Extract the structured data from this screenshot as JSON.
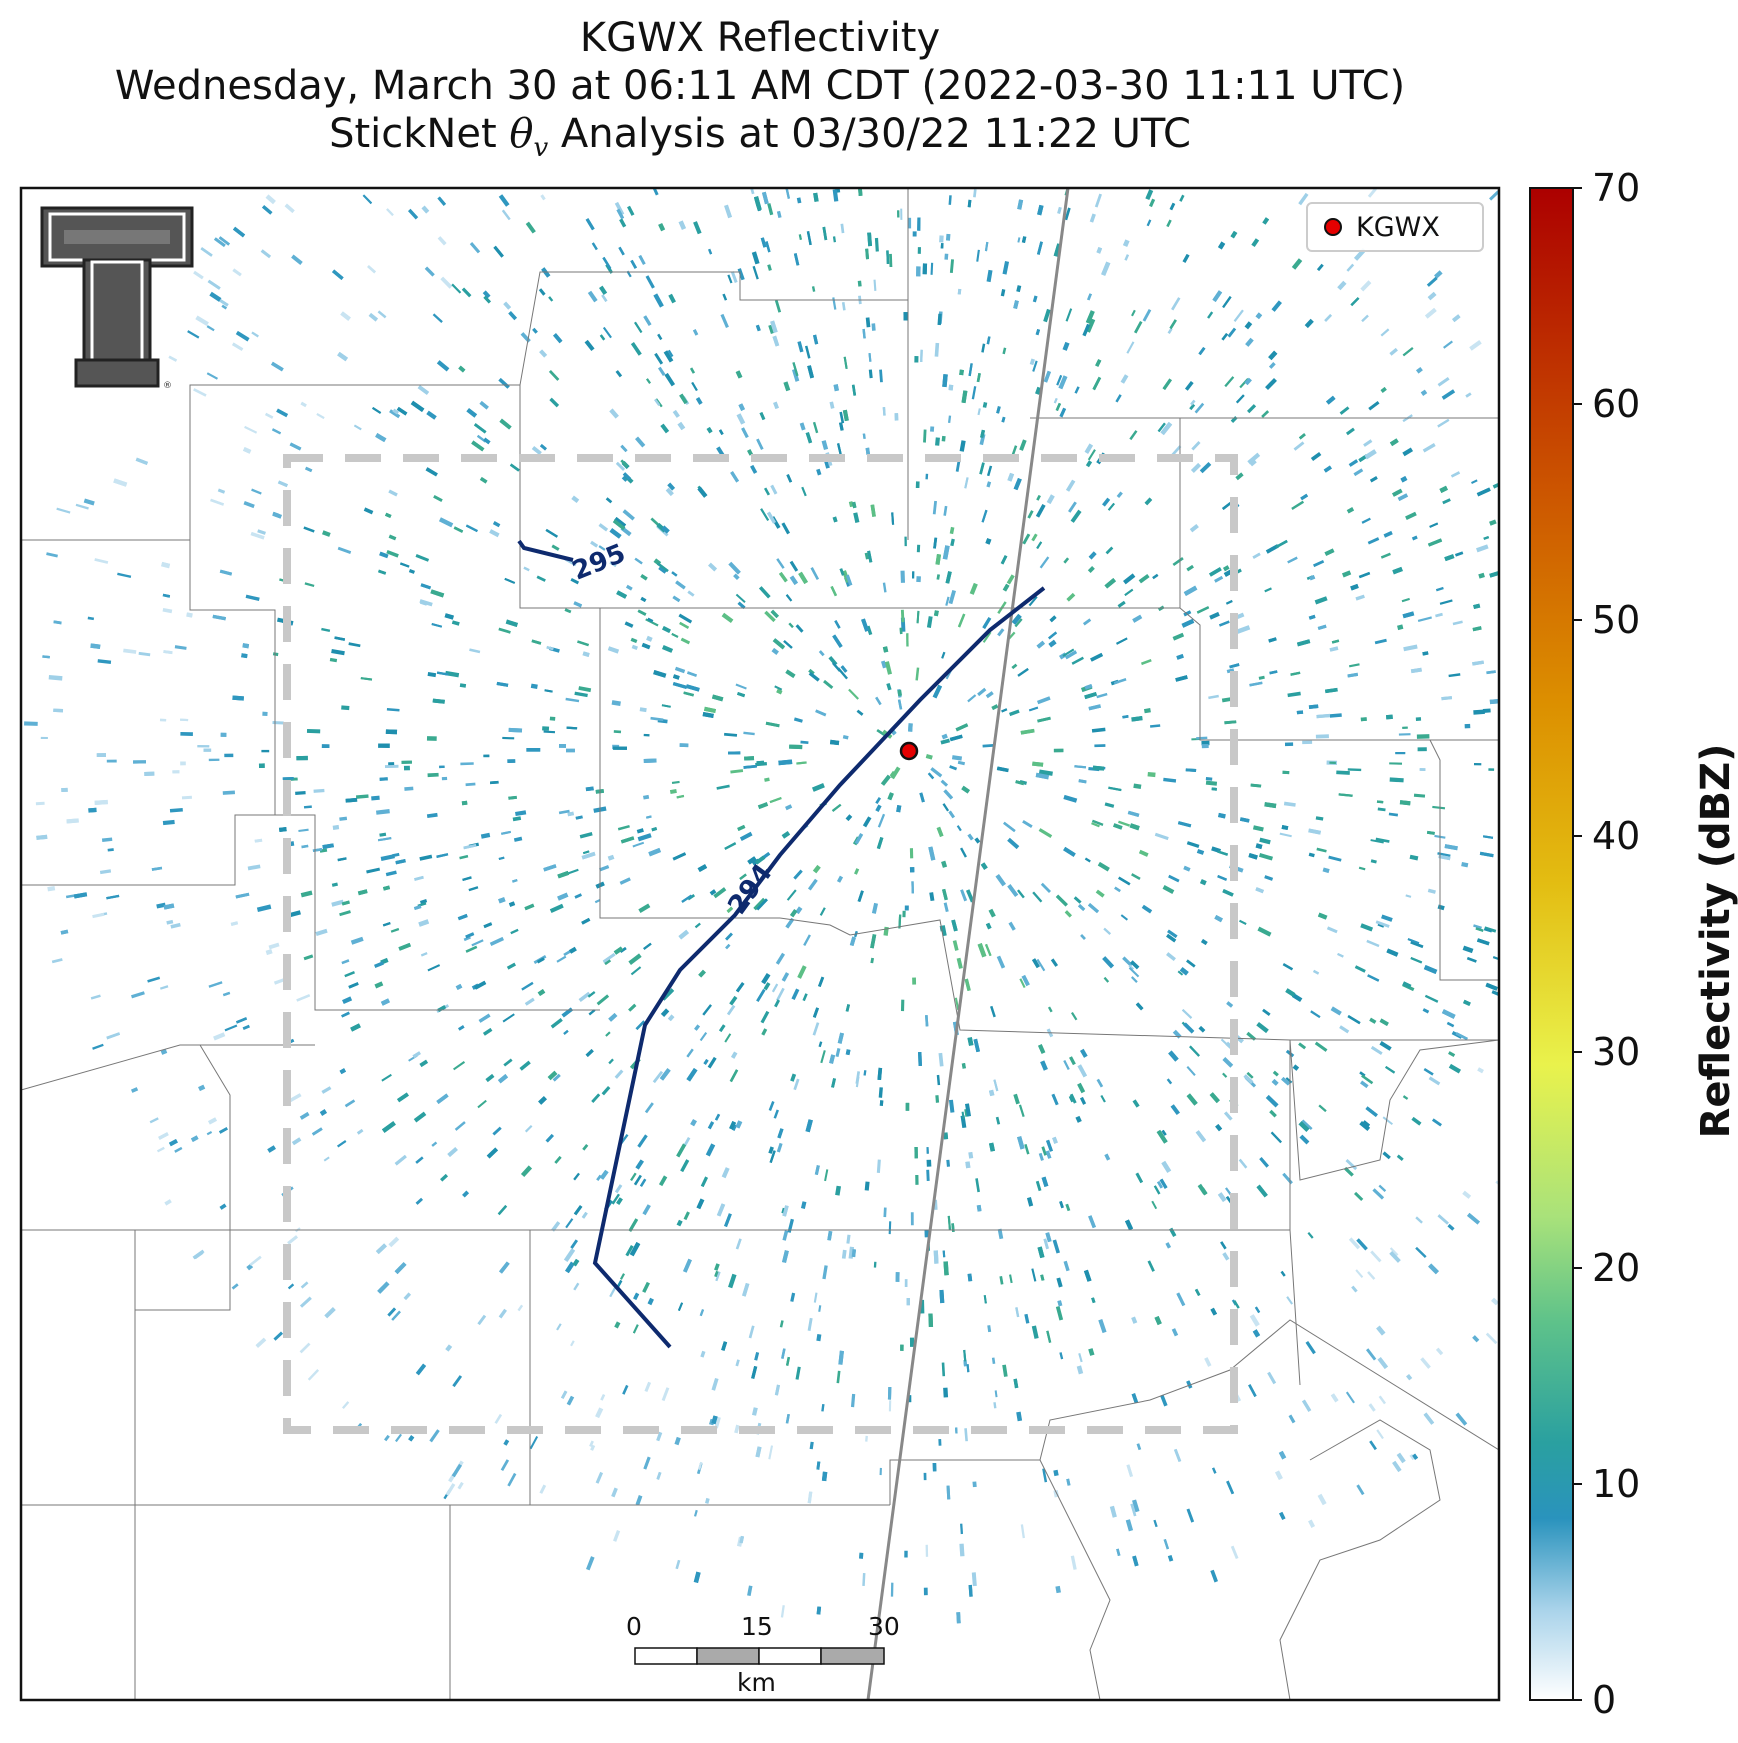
{
  "title": {
    "line1": "KGWX Reflectivity",
    "line2": "Wednesday, March 30 at 06:11 AM CDT (2022-03-30 11:11 UTC)",
    "line3_prefix": "StickNet ",
    "line3_symbol": "θ",
    "line3_subscript": "v",
    "line3_suffix": " Analysis at 03/30/22 11:22 UTC"
  },
  "legend": {
    "label": "KGWX",
    "marker_color": "#e50000"
  },
  "colorbar": {
    "label": "Reflectivity (dBZ)",
    "min": 0,
    "max": 70,
    "ticks": [
      "0",
      "10",
      "20",
      "30",
      "40",
      "50",
      "60",
      "70"
    ],
    "colors": [
      "#ffffff",
      "#6fb6dc",
      "#1e90b0",
      "#4fb38a",
      "#a8e07a",
      "#e6f04a",
      "#e0b400",
      "#d97a00",
      "#c84a00",
      "#b00000"
    ]
  },
  "contours": [
    {
      "label": "295",
      "color": "#0e2a6e"
    },
    {
      "label": "294",
      "color": "#0e2a6e"
    }
  ],
  "scale_bar": {
    "labels": [
      "0",
      "15",
      "30"
    ],
    "unit": "km"
  },
  "logo": {
    "name": "Texas Tech Double T"
  }
}
